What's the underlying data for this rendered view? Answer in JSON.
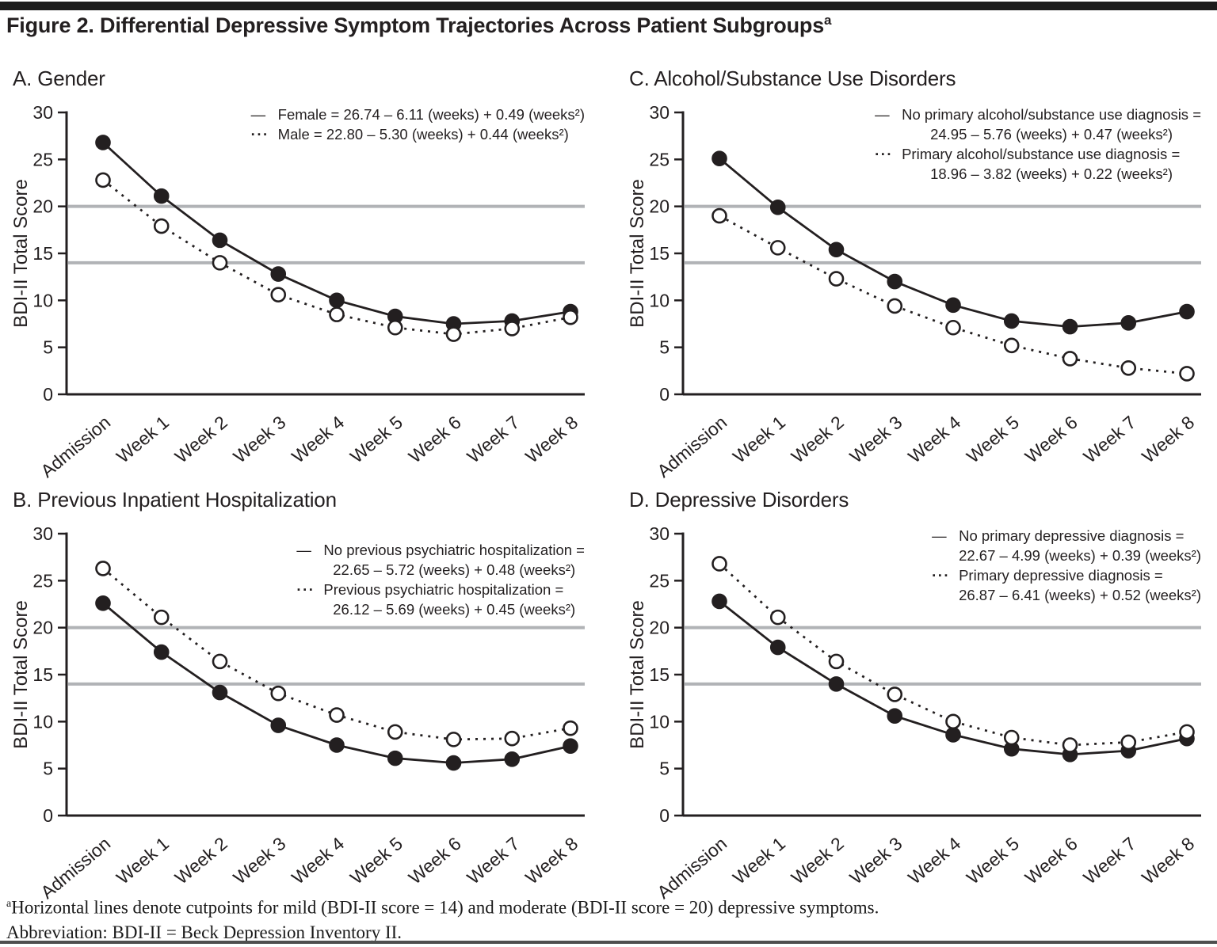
{
  "page": {
    "title": {
      "text": "Figure 2. Differential Depressive Symptom Trajectories Across Patient Subgroups",
      "superscript": "a"
    },
    "footnote": {
      "superscript": "a",
      "line1": "Horizontal lines denote cutpoints for mild (BDI-II score = 14) and moderate (BDI-II score = 20) depressive symptoms.",
      "line2": "Abbreviation: BDI-II = Beck Depression Inventory II."
    },
    "colors": {
      "ink": "#231f20",
      "cutline": "#b1b3b6",
      "background": "#ffffff",
      "top_rule": "#1c1c1c",
      "bottom_rule": "#4f4f4f"
    }
  },
  "chart_data": [
    {
      "id": "A",
      "type": "line",
      "title": "A. Gender",
      "ylabel": "BDI-II Total Score",
      "ylim": [
        0,
        30
      ],
      "yticks": [
        0,
        5,
        10,
        15,
        20,
        25,
        30
      ],
      "grid": false,
      "legend_position": "top-right",
      "cutlines": [
        {
          "label": "mild",
          "y": 14
        },
        {
          "label": "moderate",
          "y": 20
        }
      ],
      "categories": [
        "Admission",
        "Week 1",
        "Week 2",
        "Week 3",
        "Week 4",
        "Week 5",
        "Week 6",
        "Week 7",
        "Week 8"
      ],
      "series": [
        {
          "name": "Female",
          "line": "solid",
          "marker": "filled",
          "values": [
            26.8,
            21.1,
            16.4,
            12.8,
            10.0,
            8.3,
            7.5,
            7.8,
            8.8
          ],
          "legend_lines": [
            "Female = 26.74 – 6.11 (weeks) + 0.49 (weeks²)"
          ]
        },
        {
          "name": "Male",
          "line": "dashed",
          "marker": "open",
          "values": [
            22.8,
            17.9,
            14.0,
            10.6,
            8.5,
            7.1,
            6.4,
            7.0,
            8.2
          ],
          "legend_lines": [
            "Male = 22.80 – 5.30 (weeks) + 0.44 (weeks²)"
          ]
        }
      ]
    },
    {
      "id": "C",
      "type": "line",
      "title": "C. Alcohol/Substance Use Disorders",
      "ylabel": "BDI-II Total Score",
      "ylim": [
        0,
        30
      ],
      "yticks": [
        0,
        5,
        10,
        15,
        20,
        25,
        30
      ],
      "grid": false,
      "legend_position": "top-right",
      "cutlines": [
        {
          "label": "mild",
          "y": 14
        },
        {
          "label": "moderate",
          "y": 20
        }
      ],
      "categories": [
        "Admission",
        "Week 1",
        "Week 2",
        "Week 3",
        "Week 4",
        "Week 5",
        "Week 6",
        "Week 7",
        "Week 8"
      ],
      "series": [
        {
          "name": "No primary alcohol/substance use diagnosis",
          "line": "solid",
          "marker": "filled",
          "values": [
            25.1,
            19.9,
            15.4,
            12.0,
            9.5,
            7.8,
            7.2,
            7.6,
            8.8
          ],
          "legend_lines": [
            "No primary alcohol/substance use diagnosis =",
            "24.95 – 5.76 (weeks) + 0.47 (weeks²)"
          ]
        },
        {
          "name": "Primary alcohol/substance use diagnosis",
          "line": "dashed",
          "marker": "open",
          "values": [
            19.0,
            15.6,
            12.3,
            9.4,
            7.1,
            5.2,
            3.8,
            2.8,
            2.2
          ],
          "legend_lines": [
            "Primary alcohol/substance use diagnosis =",
            "18.96 – 3.82 (weeks) + 0.22 (weeks²)"
          ]
        }
      ]
    },
    {
      "id": "B",
      "type": "line",
      "title": "B. Previous Inpatient Hospitalization",
      "ylabel": "BDI-II Total Score",
      "ylim": [
        0,
        30
      ],
      "yticks": [
        0,
        5,
        10,
        15,
        20,
        25,
        30
      ],
      "grid": false,
      "legend_position": "top-right",
      "cutlines": [
        {
          "label": "mild",
          "y": 14
        },
        {
          "label": "moderate",
          "y": 20
        }
      ],
      "categories": [
        "Admission",
        "Week 1",
        "Week 2",
        "Week 3",
        "Week 4",
        "Week 5",
        "Week 6",
        "Week 7",
        "Week 8"
      ],
      "series": [
        {
          "name": "No previous psychiatric hospitalization",
          "line": "solid",
          "marker": "filled",
          "values": [
            22.6,
            17.4,
            13.1,
            9.6,
            7.5,
            6.1,
            5.6,
            6.0,
            7.4
          ],
          "legend_lines": [
            "No previous psychiatric hospitalization =",
            "22.65 – 5.72 (weeks) + 0.48 (weeks²)"
          ]
        },
        {
          "name": "Previous psychiatric hospitalization",
          "line": "dashed",
          "marker": "open",
          "values": [
            26.3,
            21.1,
            16.4,
            13.0,
            10.7,
            8.9,
            8.1,
            8.2,
            9.3
          ],
          "legend_lines": [
            "Previous psychiatric hospitalization =",
            "26.12 – 5.69 (weeks) + 0.45 (weeks²)"
          ]
        }
      ]
    },
    {
      "id": "D",
      "type": "line",
      "title": "D. Depressive Disorders",
      "ylabel": "BDI-II Total Score",
      "ylim": [
        0,
        30
      ],
      "yticks": [
        0,
        5,
        10,
        15,
        20,
        25,
        30
      ],
      "grid": false,
      "legend_position": "top-right",
      "cutlines": [
        {
          "label": "mild",
          "y": 14
        },
        {
          "label": "moderate",
          "y": 20
        }
      ],
      "categories": [
        "Admission",
        "Week 1",
        "Week 2",
        "Week 3",
        "Week 4",
        "Week 5",
        "Week 6",
        "Week 7",
        "Week 8"
      ],
      "series": [
        {
          "name": "No primary depressive diagnosis",
          "line": "solid",
          "marker": "filled",
          "values": [
            22.8,
            17.9,
            14.0,
            10.6,
            8.6,
            7.1,
            6.5,
            6.9,
            8.2
          ],
          "legend_lines": [
            "No primary depressive diagnosis =",
            "22.67 – 4.99 (weeks) + 0.39 (weeks²)"
          ]
        },
        {
          "name": "Primary depressive diagnosis",
          "line": "dashed",
          "marker": "open",
          "values": [
            26.8,
            21.1,
            16.4,
            12.9,
            10.0,
            8.3,
            7.5,
            7.8,
            8.9
          ],
          "legend_lines": [
            "Primary depressive diagnosis =",
            "26.87 – 6.41 (weeks) + 0.52 (weeks²)"
          ]
        }
      ]
    }
  ]
}
